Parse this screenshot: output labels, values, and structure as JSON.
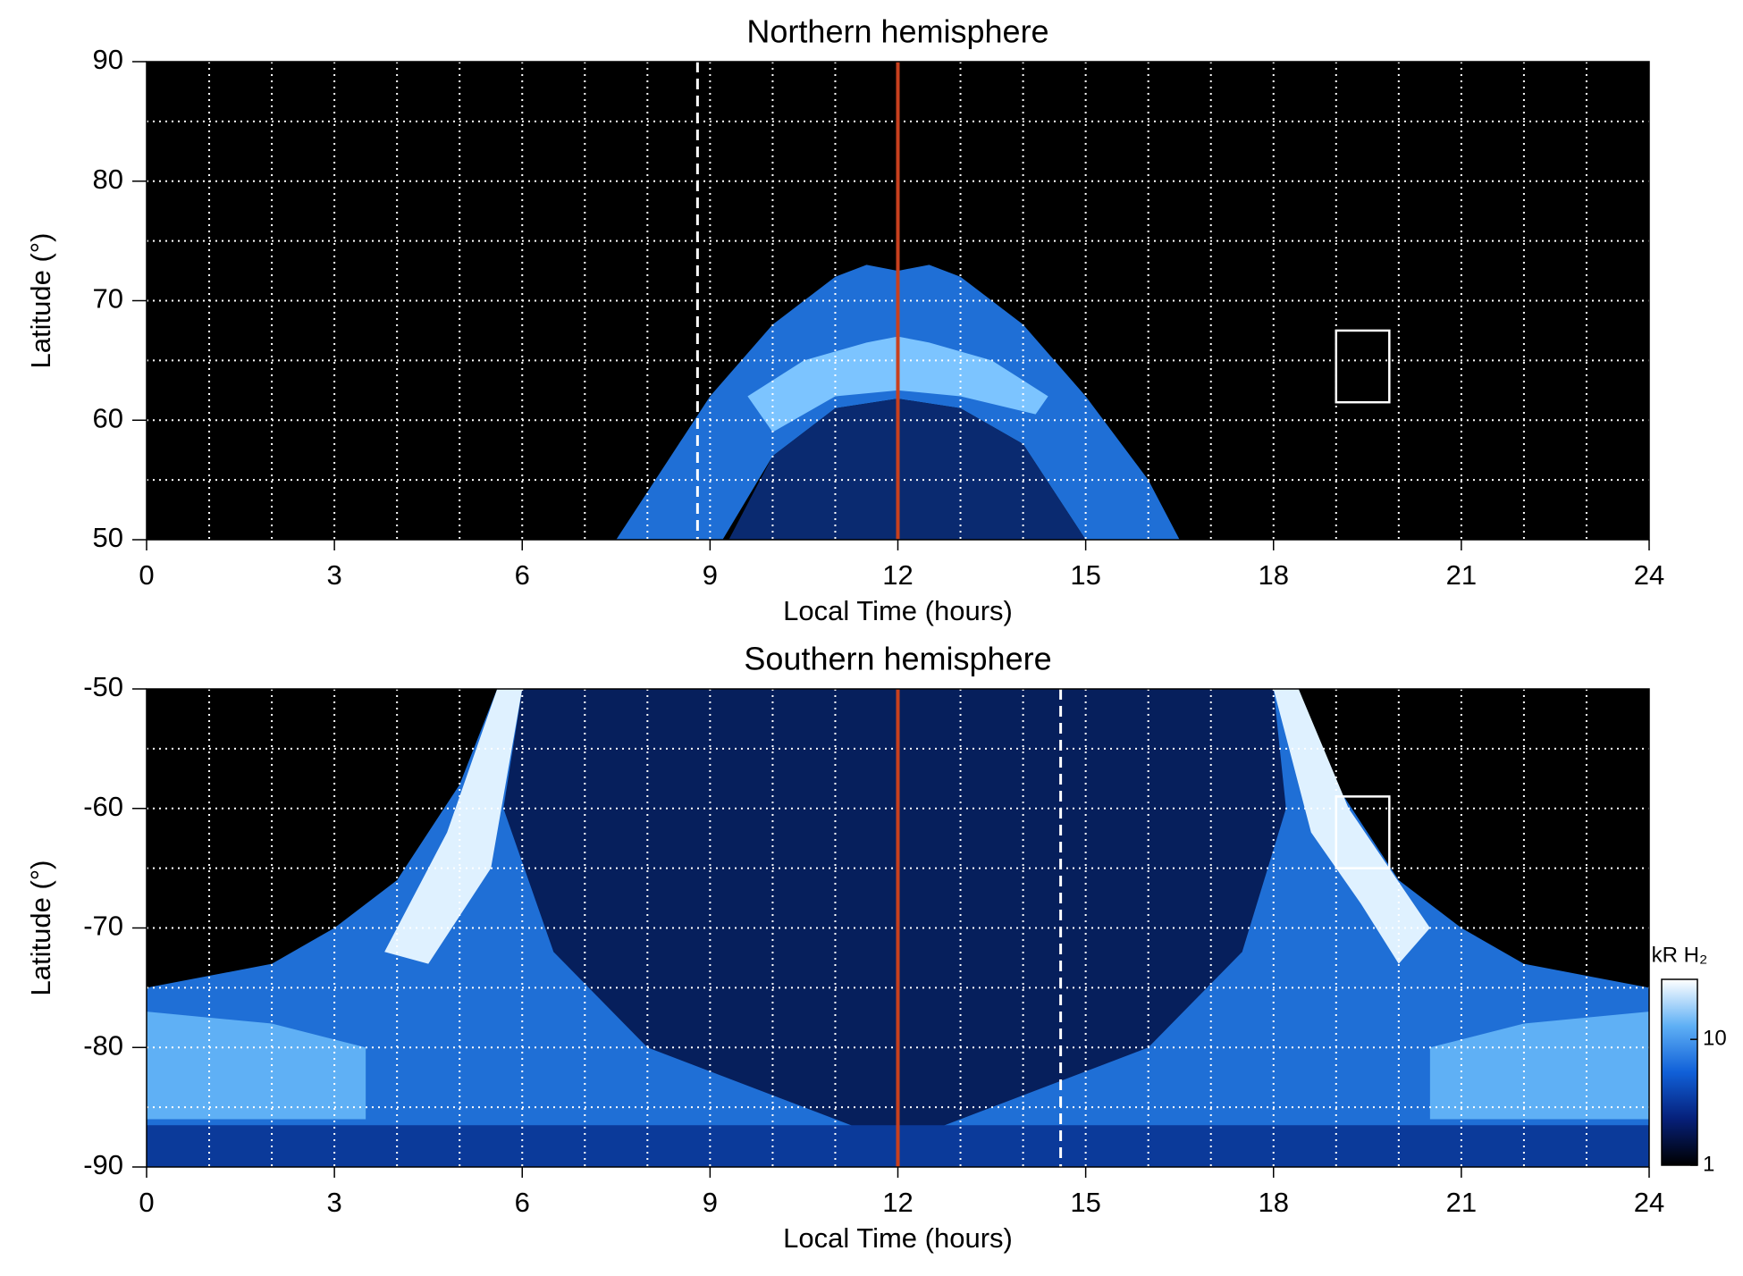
{
  "chart_data": [
    {
      "type": "map",
      "title": "Northern hemisphere",
      "x_label": "Local Time (hours)",
      "y_label": "Latitude (°)",
      "xlim": [
        0,
        24
      ],
      "xticks": [
        0,
        3,
        6,
        9,
        12,
        15,
        18,
        21,
        24
      ],
      "xgrid": [
        1,
        2,
        3,
        4,
        5,
        6,
        7,
        8,
        9,
        10,
        11,
        12,
        13,
        14,
        15,
        16,
        17,
        18,
        19,
        20,
        21,
        22,
        23
      ],
      "ylim": [
        50,
        90
      ],
      "yticks": [
        50,
        60,
        70,
        80,
        90
      ],
      "ygrid": [
        55,
        60,
        65,
        70,
        75,
        80,
        85
      ],
      "aurora": [
        {
          "color": "#1f6fd6",
          "x": [
            7.5,
            8,
            9,
            10,
            11,
            11.5,
            12,
            12.5,
            13,
            14,
            15,
            16,
            16.5,
            15,
            14,
            13,
            12,
            11,
            10,
            9.2
          ],
          "y": [
            50,
            54,
            62,
            68,
            72,
            73,
            72.5,
            73,
            72,
            68,
            62,
            55,
            50,
            50,
            58,
            61,
            61.8,
            61,
            57,
            50
          ]
        },
        {
          "color": "#7cc4ff",
          "x": [
            9.6,
            10.5,
            11.5,
            12,
            12.5,
            13.5,
            14.4,
            14.2,
            13,
            12,
            11,
            10
          ],
          "y": [
            62,
            65,
            66.5,
            67,
            66.5,
            65,
            62,
            60.5,
            62,
            62.5,
            62,
            59
          ]
        },
        {
          "color": "#0a2a70",
          "x": [
            9.3,
            10,
            11,
            12,
            13,
            14,
            15
          ],
          "y": [
            50,
            57,
            61,
            61.8,
            61,
            58,
            50
          ]
        }
      ],
      "noon": 12,
      "noon_color": "#c8401e",
      "dashed": 8.8,
      "box": {
        "x": [
          19,
          19.85
        ],
        "y": [
          61.5,
          67.5
        ]
      }
    },
    {
      "type": "map",
      "title": "Southern hemisphere",
      "x_label": "Local Time (hours)",
      "y_label": "Latitude (°)",
      "xlim": [
        0,
        24
      ],
      "xticks": [
        0,
        3,
        6,
        9,
        12,
        15,
        18,
        21,
        24
      ],
      "xgrid": [
        1,
        2,
        3,
        4,
        5,
        6,
        7,
        8,
        9,
        10,
        11,
        12,
        13,
        14,
        15,
        16,
        17,
        18,
        19,
        20,
        21,
        22,
        23
      ],
      "ylim": [
        -90,
        -50
      ],
      "yticks": [
        -90,
        -80,
        -70,
        -60,
        -50
      ],
      "ygrid": [
        -85,
        -80,
        -75,
        -70,
        -65,
        -60,
        -55
      ],
      "aurora": [
        {
          "color": "#1f6fd6",
          "x": [
            0,
            1,
            2,
            3,
            4,
            5,
            5.6,
            18.4,
            19,
            20,
            21,
            22,
            23,
            24,
            24,
            0
          ],
          "y": [
            -75,
            -74,
            -73,
            -70,
            -66,
            -58,
            -50,
            -50,
            -58,
            -66,
            -70,
            -73,
            -74,
            -75,
            -90,
            -90
          ]
        },
        {
          "color": "#061f5c",
          "x": [
            6,
            18,
            18.2,
            17.5,
            16,
            12,
            8,
            6.5,
            5.7
          ],
          "y": [
            -50,
            -50,
            -60,
            -72,
            -80,
            -88,
            -80,
            -72,
            -60
          ]
        },
        {
          "color": "#dff1ff",
          "x": [
            5.6,
            6,
            5.5,
            4.5,
            3.8,
            4.8
          ],
          "y": [
            -50,
            -50,
            -65,
            -73,
            -72,
            -62
          ]
        },
        {
          "color": "#dff1ff",
          "x": [
            18,
            18.4,
            19.2,
            20.5,
            20,
            19.4,
            18.6
          ],
          "y": [
            -50,
            -50,
            -60,
            -70,
            -73,
            -68,
            -62
          ]
        },
        {
          "color": "#5fb0f5",
          "x": [
            0,
            2,
            3.5,
            3.5,
            2,
            0
          ],
          "y": [
            -77,
            -78,
            -80,
            -86,
            -86,
            -86
          ]
        },
        {
          "color": "#5fb0f5",
          "x": [
            24,
            22,
            20.5,
            20.5,
            22,
            24
          ],
          "y": [
            -77,
            -78,
            -80,
            -86,
            -86,
            -86
          ]
        },
        {
          "color": "#0b3a9a",
          "x": [
            0,
            24,
            24,
            0
          ],
          "y": [
            -86.5,
            -86.5,
            -90,
            -90
          ]
        }
      ],
      "noon": 12,
      "noon_color": "#c8401e",
      "dashed": 14.6,
      "box": {
        "x": [
          19,
          19.85
        ],
        "y": [
          -65,
          -59
        ]
      }
    },
    {
      "type": "colorbar",
      "label": "kR H₂",
      "lim": [
        1,
        30
      ],
      "ticks": [
        1,
        10
      ],
      "log": true,
      "colors": [
        "#000000",
        "#06207a",
        "#1060d8",
        "#5fb0f5",
        "#ffffff"
      ]
    }
  ]
}
